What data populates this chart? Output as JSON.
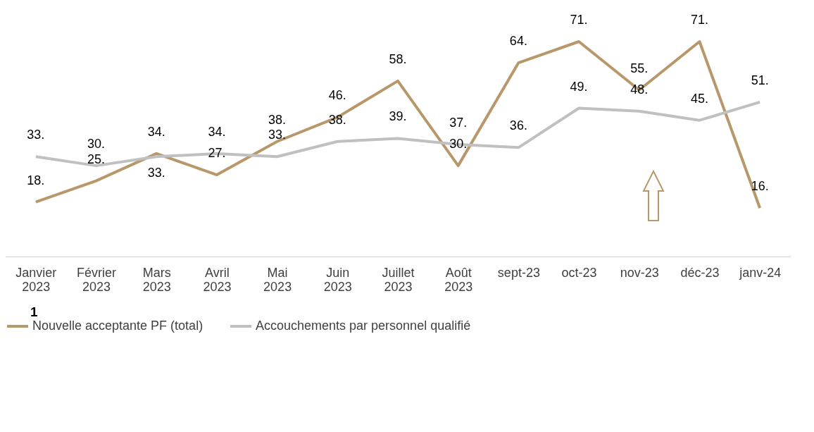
{
  "chart_data": {
    "type": "line",
    "categories": [
      "Janvier 2023",
      "Février 2023",
      "Mars 2023",
      "Avril 2023",
      "Mai 2023",
      "Juin 2023",
      "Juillet 2023",
      "Août 2023",
      "sept-23",
      "oct-23",
      "nov-23",
      "déc-23",
      "janv-24"
    ],
    "series": [
      {
        "name": "Nouvelle acceptante PF (total)",
        "color": "#b8986a",
        "values": [
          18,
          25,
          34,
          27,
          38,
          46,
          58,
          30,
          64,
          71,
          55,
          71,
          16
        ],
        "value_labels": [
          "18.",
          "25.",
          "34.",
          "27.",
          "38.",
          "46.",
          "58.",
          "30.",
          "64.",
          "71.",
          "55.",
          "71.",
          "16."
        ]
      },
      {
        "name": "Accouchements par personnel qualifié",
        "color": "#c0c0c0",
        "values": [
          33,
          30,
          33,
          34,
          33,
          38,
          39,
          37,
          36,
          49,
          48,
          45,
          51
        ],
        "value_labels": [
          "33.",
          "30.",
          "33.",
          "34.",
          "33.",
          "38.",
          "39.",
          "37.",
          "36.",
          "49.",
          "48.",
          "45.",
          "51."
        ]
      }
    ],
    "annotations": [
      "1"
    ],
    "legend": "bottom",
    "grid": false,
    "marker": "none",
    "line_style": "solid"
  }
}
